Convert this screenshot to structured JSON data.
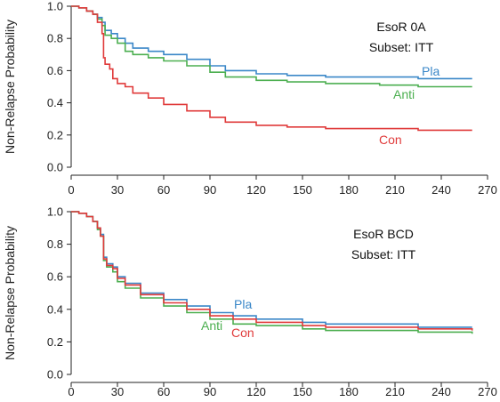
{
  "chart_data": [
    {
      "type": "line",
      "step": true,
      "ylabel": "Non-Relapse Probability",
      "xlabel": "",
      "xlim": [
        0,
        270
      ],
      "ylim": [
        0,
        1
      ],
      "x_ticks": [
        "0",
        "30",
        "60",
        "90",
        "120",
        "150",
        "180",
        "210",
        "240",
        "270"
      ],
      "y_ticks": [
        "0.0",
        "0.2",
        "0.4",
        "0.6",
        "0.8",
        "1.0"
      ],
      "annotation": [
        "EsoR 0A",
        "Subset: ITT"
      ],
      "grid": false,
      "series": [
        {
          "name": "Pla",
          "color": "#3a87c8",
          "x": [
            0,
            5,
            10,
            14,
            17,
            20,
            22,
            26,
            30,
            35,
            40,
            50,
            60,
            75,
            90,
            100,
            120,
            140,
            165,
            200,
            225,
            260
          ],
          "y": [
            1.0,
            0.99,
            0.97,
            0.95,
            0.93,
            0.9,
            0.85,
            0.83,
            0.8,
            0.77,
            0.74,
            0.72,
            0.7,
            0.67,
            0.63,
            0.6,
            0.58,
            0.57,
            0.56,
            0.56,
            0.55,
            0.55
          ]
        },
        {
          "name": "Anti",
          "color": "#4caf50",
          "x": [
            0,
            5,
            10,
            14,
            17,
            20,
            22,
            26,
            30,
            35,
            40,
            50,
            60,
            75,
            90,
            100,
            120,
            140,
            165,
            200,
            225,
            260
          ],
          "y": [
            1.0,
            0.99,
            0.97,
            0.95,
            0.92,
            0.88,
            0.82,
            0.8,
            0.77,
            0.72,
            0.7,
            0.68,
            0.66,
            0.63,
            0.59,
            0.56,
            0.54,
            0.53,
            0.52,
            0.51,
            0.5,
            0.5
          ]
        },
        {
          "name": "Con",
          "color": "#e03a3a",
          "x": [
            0,
            5,
            10,
            14,
            17,
            20,
            21,
            22,
            25,
            27,
            30,
            35,
            40,
            50,
            60,
            75,
            90,
            100,
            120,
            140,
            165,
            200,
            225,
            260
          ],
          "y": [
            1.0,
            0.99,
            0.97,
            0.95,
            0.9,
            0.83,
            0.68,
            0.64,
            0.61,
            0.55,
            0.52,
            0.5,
            0.46,
            0.43,
            0.39,
            0.35,
            0.31,
            0.28,
            0.26,
            0.25,
            0.24,
            0.24,
            0.23,
            0.23
          ]
        }
      ]
    },
    {
      "type": "line",
      "step": true,
      "ylabel": "Non-Relapse Probability",
      "xlabel": "",
      "xlim": [
        0,
        270
      ],
      "ylim": [
        0,
        1
      ],
      "x_ticks": [
        "0",
        "30",
        "60",
        "90",
        "120",
        "150",
        "180",
        "210",
        "240",
        "270"
      ],
      "y_ticks": [
        "0.0",
        "0.2",
        "0.4",
        "0.6",
        "0.8",
        "1.0"
      ],
      "annotation": [
        "EsoR BCD",
        "Subset: ITT"
      ],
      "grid": false,
      "series": [
        {
          "name": "Pla",
          "color": "#3a87c8",
          "x": [
            0,
            5,
            10,
            14,
            17,
            19,
            21,
            23,
            27,
            30,
            35,
            45,
            60,
            75,
            90,
            105,
            120,
            150,
            165,
            225,
            260
          ],
          "y": [
            1.0,
            0.99,
            0.97,
            0.94,
            0.9,
            0.86,
            0.72,
            0.68,
            0.66,
            0.6,
            0.56,
            0.5,
            0.46,
            0.42,
            0.38,
            0.36,
            0.34,
            0.32,
            0.31,
            0.29,
            0.29
          ]
        },
        {
          "name": "Anti",
          "color": "#4caf50",
          "x": [
            0,
            5,
            10,
            14,
            17,
            19,
            21,
            23,
            27,
            30,
            35,
            45,
            60,
            75,
            90,
            105,
            120,
            150,
            165,
            225,
            260
          ],
          "y": [
            1.0,
            0.99,
            0.97,
            0.94,
            0.89,
            0.85,
            0.7,
            0.66,
            0.63,
            0.57,
            0.53,
            0.47,
            0.42,
            0.38,
            0.34,
            0.31,
            0.3,
            0.28,
            0.27,
            0.26,
            0.25
          ]
        },
        {
          "name": "Con",
          "color": "#e03a3a",
          "x": [
            0,
            5,
            10,
            14,
            17,
            19,
            21,
            23,
            27,
            30,
            35,
            45,
            60,
            75,
            90,
            105,
            120,
            150,
            165,
            225,
            260
          ],
          "y": [
            1.0,
            0.99,
            0.97,
            0.94,
            0.9,
            0.85,
            0.71,
            0.67,
            0.65,
            0.59,
            0.55,
            0.49,
            0.44,
            0.4,
            0.36,
            0.34,
            0.32,
            0.3,
            0.29,
            0.28,
            0.27
          ]
        }
      ]
    }
  ]
}
